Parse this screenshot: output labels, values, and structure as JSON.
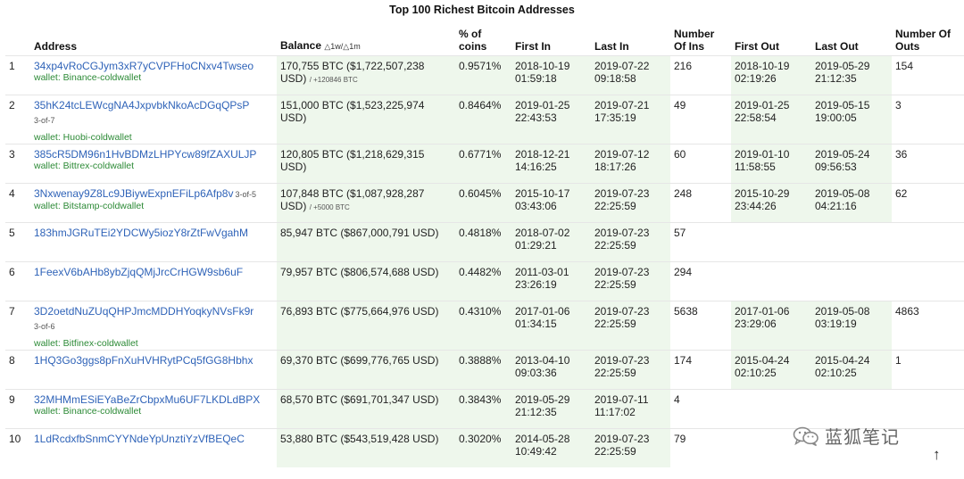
{
  "page": {
    "title": "Top 100 Richest Bitcoin Addresses",
    "watermark": "蓝狐笔记",
    "scroll_top_glyph": "↑"
  },
  "columns": {
    "address": "Address",
    "balance": "Balance",
    "balance_suffix": "△1w/△1m",
    "pct_coins": "% of coins",
    "first_in": "First In",
    "last_in": "Last In",
    "number_of_ins": "Number Of Ins",
    "first_out": "First Out",
    "last_out": "Last Out",
    "number_of_outs": "Number Of Outs"
  },
  "colors": {
    "link": "#2f63b8",
    "wallet_label": "#2c8a36",
    "cell_highlight": "#eef7ec"
  },
  "rows": [
    {
      "rank": "1",
      "address": "34xp4vRoCGJym3xR7yCVPFHoCNxv4Twseo",
      "multisig": "",
      "wallet": "wallet: Binance-coldwallet",
      "balance": "170,755 BTC ($1,722,507,238 USD)",
      "delta": "/ +120846 BTC",
      "pct": "0.9571%",
      "first_in": "2018-10-19 01:59:18",
      "last_in": "2019-07-22 09:18:58",
      "ins": "216",
      "first_out": "2018-10-19 02:19:26",
      "last_out": "2019-05-29 21:12:35",
      "outs": "154"
    },
    {
      "rank": "2",
      "address": "35hK24tcLEWcgNA4JxpvbkNkoAcDGqQPsP",
      "multisig": "3-of-7",
      "wallet": "wallet: Huobi-coldwallet",
      "balance": "151,000 BTC ($1,523,225,974 USD)",
      "delta": "",
      "pct": "0.8464%",
      "first_in": "2019-01-25 22:43:53",
      "last_in": "2019-07-21 17:35:19",
      "ins": "49",
      "first_out": "2019-01-25 22:58:54",
      "last_out": "2019-05-15 19:00:05",
      "outs": "3"
    },
    {
      "rank": "3",
      "address": "385cR5DM96n1HvBDMzLHPYcw89fZAXULJP",
      "multisig": "",
      "wallet": "wallet: Bittrex-coldwallet",
      "balance": "120,805 BTC ($1,218,629,315 USD)",
      "delta": "",
      "pct": "0.6771%",
      "first_in": "2018-12-21 14:16:25",
      "last_in": "2019-07-12 18:17:26",
      "ins": "60",
      "first_out": "2019-01-10 11:58:55",
      "last_out": "2019-05-24 09:56:53",
      "outs": "36"
    },
    {
      "rank": "4",
      "address": "3Nxwenay9Z8Lc9JBiywExpnEFiLp6Afp8v",
      "multisig": "3-of-5",
      "wallet": "wallet: Bitstamp-coldwallet",
      "balance": "107,848 BTC ($1,087,928,287 USD)",
      "delta": "/ +5000 BTC",
      "pct": "0.6045%",
      "first_in": "2015-10-17 03:43:06",
      "last_in": "2019-07-23 22:25:59",
      "ins": "248",
      "first_out": "2015-10-29 23:44:26",
      "last_out": "2019-05-08 04:21:16",
      "outs": "62"
    },
    {
      "rank": "5",
      "address": "183hmJGRuTEi2YDCWy5iozY8rZtFwVgahM",
      "multisig": "",
      "wallet": "",
      "balance": "85,947 BTC ($867,000,791 USD)",
      "delta": "",
      "pct": "0.4818%",
      "first_in": "2018-07-02 01:29:21",
      "last_in": "2019-07-23 22:25:59",
      "ins": "57",
      "first_out": "",
      "last_out": "",
      "outs": ""
    },
    {
      "rank": "6",
      "address": "1FeexV6bAHb8ybZjqQMjJrcCrHGW9sb6uF",
      "multisig": "",
      "wallet": "",
      "balance": "79,957 BTC ($806,574,688 USD)",
      "delta": "",
      "pct": "0.4482%",
      "first_in": "2011-03-01 23:26:19",
      "last_in": "2019-07-23 22:25:59",
      "ins": "294",
      "first_out": "",
      "last_out": "",
      "outs": ""
    },
    {
      "rank": "7",
      "address": "3D2oetdNuZUqQHPJmcMDDHYoqkyNVsFk9r",
      "multisig": "3-of-6",
      "wallet": "wallet: Bitfinex-coldwallet",
      "balance": "76,893 BTC ($775,664,976 USD)",
      "delta": "",
      "pct": "0.4310%",
      "first_in": "2017-01-06 01:34:15",
      "last_in": "2019-07-23 22:25:59",
      "ins": "5638",
      "first_out": "2017-01-06 23:29:06",
      "last_out": "2019-05-08 03:19:19",
      "outs": "4863"
    },
    {
      "rank": "8",
      "address": "1HQ3Go3ggs8pFnXuHVHRytPCq5fGG8Hbhx",
      "multisig": "",
      "wallet": "",
      "balance": "69,370 BTC ($699,776,765 USD)",
      "delta": "",
      "pct": "0.3888%",
      "first_in": "2013-04-10 09:03:36",
      "last_in": "2019-07-23 22:25:59",
      "ins": "174",
      "first_out": "2015-04-24 02:10:25",
      "last_out": "2015-04-24 02:10:25",
      "outs": "1"
    },
    {
      "rank": "9",
      "address": "32MHMmESiEYaBeZrCbpxMu6UF7LKDLdBPX",
      "multisig": "",
      "wallet": "wallet: Binance-coldwallet",
      "balance": "68,570 BTC ($691,701,347 USD)",
      "delta": "",
      "pct": "0.3843%",
      "first_in": "2019-05-29 21:12:35",
      "last_in": "2019-07-11 11:17:02",
      "ins": "4",
      "first_out": "",
      "last_out": "",
      "outs": ""
    },
    {
      "rank": "10",
      "address": "1LdRcdxfbSnmCYYNdeYpUnztiYzVfBEQeC",
      "multisig": "",
      "wallet": "",
      "balance": "53,880 BTC ($543,519,428 USD)",
      "delta": "",
      "pct": "0.3020%",
      "first_in": "2014-05-28 10:49:42",
      "last_in": "2019-07-23 22:25:59",
      "ins": "79",
      "first_out": "",
      "last_out": "",
      "outs": ""
    }
  ]
}
